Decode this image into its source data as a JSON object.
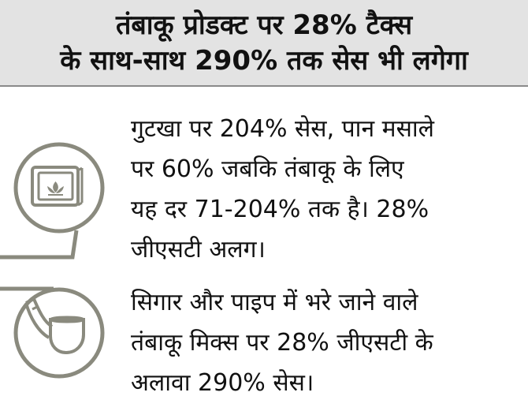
{
  "header": {
    "line1": "तंबाकू प्रोडक्ट पर 28% टैक्स",
    "line2": "के साथ-साथ 290% तक सेस भी लगेगा"
  },
  "items": [
    {
      "icon": "gutkha-packet-icon",
      "lines": [
        "गुटखा पर 204% सेस, पान मसाले",
        "पर 60% जबकि तंबाकू के लिए",
        "यह दर 71-204% तक है। 28%",
        "जीएसटी अलग।"
      ]
    },
    {
      "icon": "smoking-pipe-icon",
      "lines": [
        "सिगार और पाइप में भरे जाने वाले",
        "तंबाकू मिक्स पर 28% जीएसटी के",
        "अलावा 290% सेस।"
      ]
    }
  ],
  "colors": {
    "header_bg": "#e3e3e3",
    "icon_stroke": "#8a8a7e"
  }
}
